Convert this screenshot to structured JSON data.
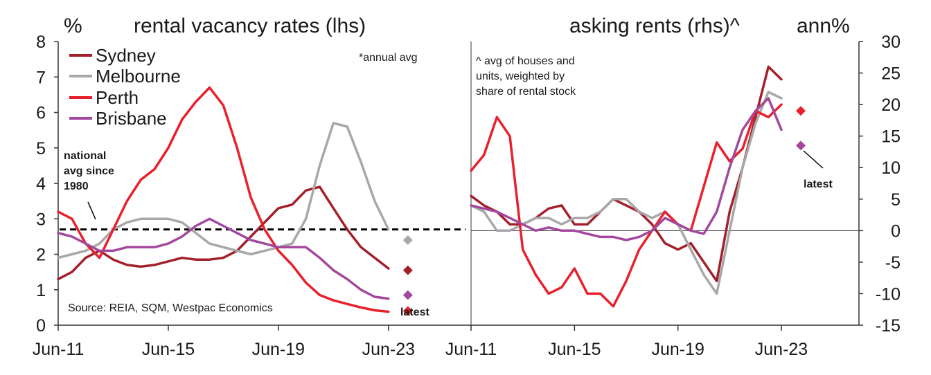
{
  "chart_data": [
    {
      "type": "line",
      "title": "rental vacancy rates (lhs)",
      "ylabel": "%",
      "x_tick_labels": [
        "Jun-11",
        "Jun-15",
        "Jun-19",
        "Jun-23"
      ],
      "x_tick_years": [
        2011.5,
        2015.5,
        2019.5,
        2023.5
      ],
      "xlim": [
        2011.5,
        2026.5
      ],
      "ylim": [
        0,
        8
      ],
      "y_ticks": [
        0,
        1,
        2,
        3,
        4,
        5,
        6,
        7,
        8
      ],
      "note": "*annual avg",
      "source": "Source: REIA, SQM, Westpac Economics",
      "reference_line": {
        "label_lines": [
          "national",
          "avg since",
          "1980"
        ],
        "value": 2.7
      },
      "latest_label": "latest",
      "series": [
        {
          "name": "Sydney",
          "color": "#a3202b",
          "x": [
            2011.5,
            2012.0,
            2012.5,
            2013.0,
            2013.5,
            2014.0,
            2014.5,
            2015.0,
            2015.5,
            2016.0,
            2016.5,
            2017.0,
            2017.5,
            2018.0,
            2018.5,
            2019.0,
            2019.5,
            2020.0,
            2020.5,
            2021.0,
            2021.5,
            2022.0,
            2022.5,
            2023.0,
            2023.5
          ],
          "y": [
            1.3,
            1.5,
            1.9,
            2.1,
            1.85,
            1.7,
            1.65,
            1.7,
            1.8,
            1.9,
            1.85,
            1.85,
            1.9,
            2.1,
            2.5,
            2.9,
            3.3,
            3.4,
            3.8,
            3.9,
            3.3,
            2.7,
            2.2,
            1.9,
            1.6
          ]
        },
        {
          "name": "Melbourne",
          "color": "#a8a8a8",
          "x": [
            2011.5,
            2012.0,
            2012.5,
            2013.0,
            2013.5,
            2014.0,
            2014.5,
            2015.0,
            2015.5,
            2016.0,
            2016.5,
            2017.0,
            2017.5,
            2018.0,
            2018.5,
            2019.0,
            2019.5,
            2020.0,
            2020.5,
            2021.0,
            2021.5,
            2022.0,
            2022.5,
            2023.0,
            2023.5
          ],
          "y": [
            1.9,
            2.0,
            2.1,
            2.3,
            2.7,
            2.9,
            3.0,
            3.0,
            3.0,
            2.9,
            2.6,
            2.3,
            2.2,
            2.1,
            2.0,
            2.1,
            2.2,
            2.3,
            3.0,
            4.5,
            5.7,
            5.6,
            4.6,
            3.5,
            2.7
          ]
        },
        {
          "name": "Perth",
          "color": "#e8202c",
          "x": [
            2011.5,
            2012.0,
            2012.5,
            2013.0,
            2013.5,
            2014.0,
            2014.5,
            2015.0,
            2015.5,
            2016.0,
            2016.5,
            2017.0,
            2017.5,
            2018.0,
            2018.5,
            2019.0,
            2019.5,
            2020.0,
            2020.5,
            2021.0,
            2021.5,
            2022.0,
            2022.5,
            2023.0,
            2023.5
          ],
          "y": [
            3.2,
            3.0,
            2.3,
            1.9,
            2.7,
            3.5,
            4.1,
            4.4,
            5.0,
            5.8,
            6.3,
            6.7,
            6.2,
            5.0,
            3.6,
            2.7,
            2.1,
            1.7,
            1.2,
            0.85,
            0.7,
            0.6,
            0.5,
            0.42,
            0.38
          ]
        },
        {
          "name": "Brisbane",
          "color": "#a3489c",
          "x": [
            2011.5,
            2012.0,
            2012.5,
            2013.0,
            2013.5,
            2014.0,
            2014.5,
            2015.0,
            2015.5,
            2016.0,
            2016.5,
            2017.0,
            2017.5,
            2018.0,
            2018.5,
            2019.0,
            2019.5,
            2020.0,
            2020.5,
            2021.0,
            2021.5,
            2022.0,
            2022.5,
            2023.0,
            2023.5
          ],
          "y": [
            2.6,
            2.5,
            2.3,
            2.1,
            2.1,
            2.2,
            2.2,
            2.2,
            2.3,
            2.5,
            2.8,
            3.0,
            2.8,
            2.6,
            2.4,
            2.3,
            2.2,
            2.2,
            2.2,
            1.9,
            1.55,
            1.3,
            1.0,
            0.8,
            0.75
          ]
        }
      ],
      "latest_points": [
        {
          "city": "Melbourne",
          "value": 2.4,
          "color": "#a8a8a8"
        },
        {
          "city": "Sydney",
          "value": 1.55,
          "color": "#a3202b"
        },
        {
          "city": "Brisbane",
          "value": 0.85,
          "color": "#a3489c"
        },
        {
          "city": "Perth",
          "value": 0.4,
          "color": "#e8202c"
        }
      ]
    },
    {
      "type": "line",
      "title": "asking rents (rhs)^",
      "ylabel": "ann%",
      "x_tick_labels": [
        "Jun-11",
        "Jun-15",
        "Jun-19",
        "Jun-23"
      ],
      "x_tick_years": [
        2011.5,
        2015.5,
        2019.5,
        2023.5
      ],
      "xlim": [
        2011.5,
        2026.5
      ],
      "ylim": [
        -15,
        30
      ],
      "y_ticks": [
        -15,
        -10,
        -5,
        0,
        5,
        10,
        15,
        20,
        25,
        30
      ],
      "note_lines": [
        "^ avg of houses and",
        "units, weighted by",
        "share of rental stock"
      ],
      "latest_label": "latest",
      "series": [
        {
          "name": "Sydney",
          "color": "#a3202b",
          "x": [
            2011.5,
            2012.0,
            2012.5,
            2013.0,
            2013.5,
            2014.0,
            2014.5,
            2015.0,
            2015.5,
            2016.0,
            2016.5,
            2017.0,
            2017.5,
            2018.0,
            2018.5,
            2019.0,
            2019.5,
            2020.0,
            2020.5,
            2021.0,
            2021.5,
            2022.0,
            2022.5,
            2023.0,
            2023.5
          ],
          "y": [
            5.5,
            4,
            3,
            1,
            1,
            2,
            3.5,
            4,
            1,
            1,
            3,
            5,
            4,
            3,
            1,
            -2,
            -3,
            -2,
            -5,
            -8,
            3,
            10,
            18,
            26,
            24
          ]
        },
        {
          "name": "Melbourne",
          "color": "#a8a8a8",
          "x": [
            2011.5,
            2012.0,
            2012.5,
            2013.0,
            2013.5,
            2014.0,
            2014.5,
            2015.0,
            2015.5,
            2016.0,
            2016.5,
            2017.0,
            2017.5,
            2018.0,
            2018.5,
            2019.0,
            2019.5,
            2020.0,
            2020.5,
            2021.0,
            2021.5,
            2022.0,
            2022.5,
            2023.0,
            2023.5
          ],
          "y": [
            4,
            3,
            0,
            0,
            1,
            2,
            2,
            1,
            2,
            2,
            3,
            5,
            5,
            3,
            2,
            3,
            1,
            -3,
            -7,
            -10,
            0,
            10,
            17,
            22,
            21
          ]
        },
        {
          "name": "Perth",
          "color": "#e8202c",
          "x": [
            2011.5,
            2012.0,
            2012.5,
            2013.0,
            2013.5,
            2014.0,
            2014.5,
            2015.0,
            2015.5,
            2016.0,
            2016.5,
            2017.0,
            2017.5,
            2018.0,
            2018.5,
            2019.0,
            2019.5,
            2020.0,
            2020.5,
            2021.0,
            2021.5,
            2022.0,
            2022.5,
            2023.0,
            2023.5
          ],
          "y": [
            9.5,
            12,
            18,
            15,
            -3,
            -7,
            -10,
            -9,
            -6,
            -10,
            -10,
            -12,
            -8,
            -3,
            0,
            3,
            1,
            0,
            7,
            14,
            11,
            13,
            19,
            18,
            20
          ]
        },
        {
          "name": "Brisbane",
          "color": "#a3489c",
          "x": [
            2011.5,
            2012.0,
            2012.5,
            2013.0,
            2013.5,
            2014.0,
            2014.5,
            2015.0,
            2015.5,
            2016.0,
            2016.5,
            2017.0,
            2017.5,
            2018.0,
            2018.5,
            2019.0,
            2019.5,
            2020.0,
            2020.5,
            2021.0,
            2021.5,
            2022.0,
            2022.5,
            2023.0,
            2023.5
          ],
          "y": [
            4,
            3.5,
            3,
            2,
            1,
            0,
            0.5,
            0,
            0,
            -0.5,
            -1,
            -1,
            -1.5,
            -1,
            0,
            2,
            1,
            0,
            -0.5,
            3,
            10,
            16,
            19,
            21,
            16
          ]
        }
      ],
      "latest_points": [
        {
          "city": "Perth",
          "value": 19,
          "color": "#e8202c"
        },
        {
          "city": "Brisbane",
          "value": 13.5,
          "color": "#a3489c"
        }
      ]
    }
  ]
}
